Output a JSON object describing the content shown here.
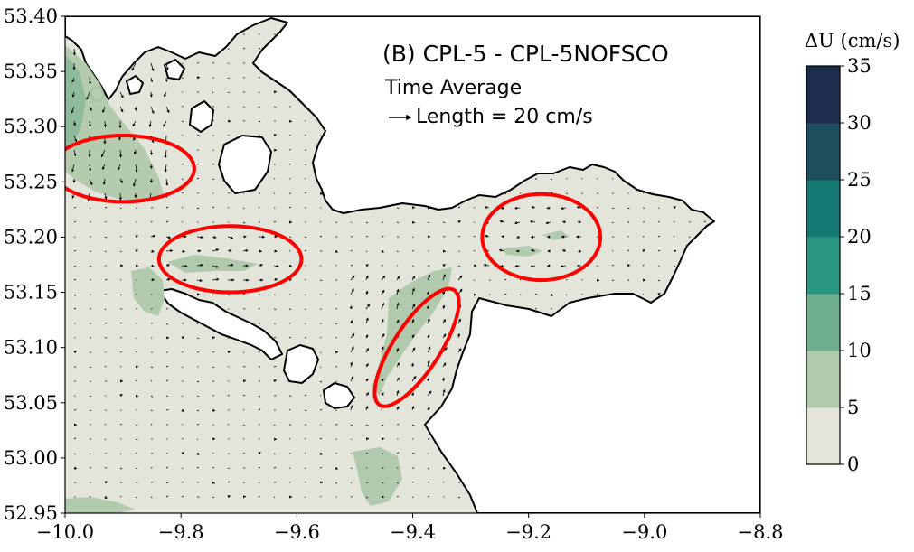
{
  "map": {
    "title": "(B) CPL-5 - CPL-5NOFSCO",
    "subtitle": "Time Average",
    "quiver_key_label": "Length = 20 cm/s",
    "x_ticks": [
      "−10.0",
      "−9.8",
      "−9.6",
      "−9.4",
      "−9.2",
      "−9.0",
      "−8.8"
    ],
    "y_ticks": [
      "53.40",
      "53.35",
      "53.30",
      "53.25",
      "53.20",
      "53.15",
      "53.10",
      "53.05",
      "53.00",
      "52.95"
    ],
    "x_range": [
      -10.0,
      -8.8
    ],
    "y_range": [
      52.95,
      53.4
    ],
    "land_color": "#ffffff",
    "sea_color": "#e3e5da",
    "coastline_color": "#000000",
    "highlight_color": "#ff0000",
    "highlights": [
      {
        "lon": -9.9,
        "lat": 53.262,
        "rlon": 0.123,
        "rlat": 0.03
      },
      {
        "lon": -9.715,
        "lat": 53.18,
        "rlon": 0.123,
        "rlat": 0.03
      },
      {
        "lon": -9.393,
        "lat": 53.1,
        "rlon": 0.04,
        "rlat": 0.062,
        "rot": 33
      },
      {
        "lon": -9.178,
        "lat": 53.2,
        "rlon": 0.102,
        "rlat": 0.039
      }
    ]
  },
  "colorbar": {
    "title": "ΔU (cm/s)",
    "ticks": [
      "0",
      "5",
      "10",
      "15",
      "20",
      "25",
      "30",
      "35"
    ],
    "levels": [
      0,
      5,
      10,
      15,
      20,
      25,
      30,
      35
    ],
    "colors": [
      "#e3e5da",
      "#b1c9ac",
      "#6fae8e",
      "#2a9880",
      "#147873",
      "#1f4e5e",
      "#1d2d4d"
    ]
  }
}
